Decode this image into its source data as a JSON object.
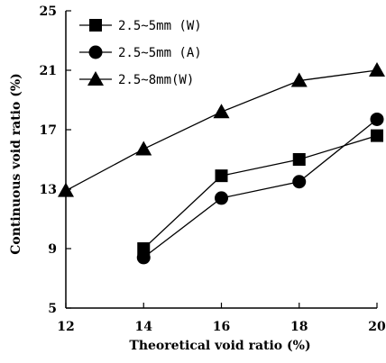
{
  "chart_data": {
    "type": "line",
    "title": "",
    "xlabel": "Theoretical void ratio (%)",
    "ylabel": "Continuous void ratio (%)",
    "xlim": [
      12,
      20
    ],
    "ylim": [
      5,
      25
    ],
    "x_ticks": [
      "12",
      "14",
      "16",
      "18",
      "20"
    ],
    "y_ticks": [
      "5",
      "9",
      "13",
      "17",
      "21",
      "25"
    ],
    "grid": false,
    "legend_position": "top-left",
    "series": [
      {
        "name": "2.5~5mm (W)",
        "marker": "square",
        "x": [
          14,
          16,
          18,
          20
        ],
        "y": [
          9.0,
          13.9,
          15.0,
          16.6
        ]
      },
      {
        "name": "2.5~5mm (A)",
        "marker": "circle",
        "x": [
          14,
          16,
          18,
          20
        ],
        "y": [
          8.4,
          12.4,
          13.5,
          17.7
        ]
      },
      {
        "name": "2.5~8mm(W)",
        "marker": "triangle",
        "x": [
          12,
          14,
          16,
          18,
          20
        ],
        "y": [
          12.9,
          15.7,
          18.2,
          20.3,
          21.0
        ]
      }
    ]
  }
}
